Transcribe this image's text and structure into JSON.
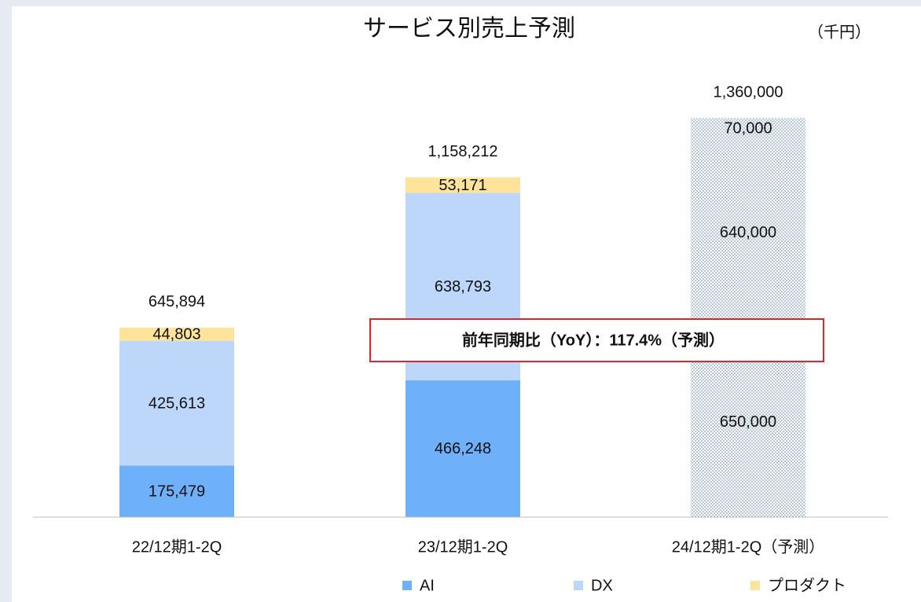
{
  "chart_data": {
    "type": "stacked_bar",
    "title": "サービス別売上予測",
    "unit": "（千円）",
    "categories": [
      "22/12期1-2Q",
      "23/12期1-2Q",
      "24/12期1-2Q（予測）"
    ],
    "series": [
      {
        "name": "AI",
        "color": "#6fb0fb",
        "values": [
          175479,
          466248,
          650000
        ],
        "value_labels": [
          "175,479",
          "466,248",
          "650,000"
        ]
      },
      {
        "name": "DX",
        "color": "#bdd7fb",
        "values": [
          425613,
          638793,
          640000
        ],
        "value_labels": [
          "425,613",
          "638,793",
          "640,000"
        ]
      },
      {
        "name": "プロダクト",
        "color": "#fde49a",
        "values": [
          44803,
          53171,
          70000
        ],
        "value_labels": [
          "44,803",
          "53,171",
          "70,000"
        ]
      }
    ],
    "totals": [
      645894,
      1158212,
      1360000
    ],
    "total_labels": [
      "645,894",
      "1,158,212",
      "1,360,000"
    ],
    "hatched": [
      false,
      false,
      true
    ],
    "annotation": "前年同期比（YoY）：117.4%（予測）",
    "ylim": [
      0,
      1500000
    ],
    "legend": "bottom"
  }
}
